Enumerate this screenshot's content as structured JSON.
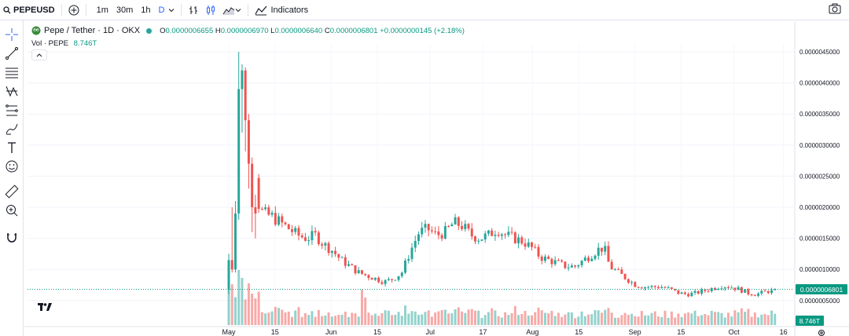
{
  "toolbar": {
    "symbol": "PEPEUSD",
    "intervals": [
      {
        "label": "1m",
        "active": false
      },
      {
        "label": "30m",
        "active": false
      },
      {
        "label": "1h",
        "active": false
      },
      {
        "label": "D",
        "active": true
      }
    ],
    "indicators_label": "Indicators"
  },
  "legend": {
    "name": "Pepe / Tether · 1D · OKX",
    "o_key": "O",
    "o_val": "0.0000006655",
    "h_key": "H",
    "h_val": "0.0000006970",
    "l_key": "L",
    "l_val": "0.0000006640",
    "c_key": "C",
    "c_val": "0.0000006801",
    "change": "+0.0000000145 (+2.18%)",
    "vol_label": "Vol · PEPE",
    "vol_value": "8.746T"
  },
  "colors": {
    "up": "#26a69a",
    "down": "#ef5350",
    "accent": "#2962ff",
    "last": "#089981"
  },
  "chart_data": {
    "type": "candlestick",
    "y_ticks": [
      "0.0000045000",
      "0.0000040000",
      "0.0000035000",
      "0.0000030000",
      "0.0000025000",
      "0.0000020000",
      "0.0000015000",
      "0.0000010000",
      "0.0000005000"
    ],
    "y_tick_values": [
      4.5,
      4.0,
      3.5,
      3.0,
      2.5,
      2.0,
      1.5,
      1.0,
      0.5
    ],
    "y_unit_note": "",
    "x_ticks": [
      "May",
      "15",
      "Jun",
      "15",
      "Jul",
      "17",
      "Aug",
      "15",
      "Sep",
      "15",
      "Oct",
      "16"
    ],
    "x_tick_days": [
      0,
      14,
      31,
      45,
      61,
      77,
      92,
      106,
      123,
      137,
      153,
      168
    ],
    "ylim": [
      0.2,
      4.7
    ],
    "last_price": "0.0000006801",
    "last_volume": "8.746T",
    "anchors": [
      [
        -1,
        1.0
      ],
      [
        0,
        0.68
      ],
      [
        1,
        1.2
      ],
      [
        2,
        1.9
      ],
      [
        3,
        3.8
      ],
      [
        4,
        4.2
      ],
      [
        5,
        3.3
      ],
      [
        6,
        2.7
      ],
      [
        7,
        2.0
      ],
      [
        8,
        1.9
      ],
      [
        10,
        1.85
      ],
      [
        12,
        1.75
      ],
      [
        14,
        1.65
      ],
      [
        16,
        1.55
      ],
      [
        18,
        1.5
      ],
      [
        20,
        1.55
      ],
      [
        22,
        1.4
      ],
      [
        24,
        1.3
      ],
      [
        26,
        1.15
      ],
      [
        28,
        1.05
      ],
      [
        30,
        0.95
      ],
      [
        32,
        0.9
      ],
      [
        34,
        0.85
      ],
      [
        36,
        0.8
      ],
      [
        38,
        0.85
      ],
      [
        40,
        0.95
      ],
      [
        42,
        1.3
      ],
      [
        44,
        1.6
      ],
      [
        46,
        1.65
      ],
      [
        48,
        1.55
      ],
      [
        50,
        1.6
      ],
      [
        52,
        1.75
      ],
      [
        54,
        1.7
      ],
      [
        56,
        1.55
      ],
      [
        58,
        1.5
      ],
      [
        60,
        1.55
      ],
      [
        62,
        1.65
      ],
      [
        64,
        1.55
      ],
      [
        66,
        1.5
      ],
      [
        68,
        1.45
      ],
      [
        70,
        1.35
      ],
      [
        72,
        1.2
      ],
      [
        74,
        1.15
      ],
      [
        76,
        1.1
      ],
      [
        78,
        1.05
      ],
      [
        80,
        1.05
      ],
      [
        82,
        1.15
      ],
      [
        84,
        1.25
      ],
      [
        86,
        1.35
      ],
      [
        87,
        1.3
      ],
      [
        88,
        1.05
      ],
      [
        90,
        0.95
      ],
      [
        92,
        0.85
      ],
      [
        94,
        0.75
      ],
      [
        96,
        0.72
      ],
      [
        98,
        0.72
      ],
      [
        100,
        0.72
      ],
      [
        102,
        0.68
      ],
      [
        104,
        0.62
      ],
      [
        106,
        0.6
      ],
      [
        108,
        0.62
      ],
      [
        110,
        0.66
      ],
      [
        112,
        0.7
      ],
      [
        114,
        0.74
      ],
      [
        116,
        0.72
      ],
      [
        118,
        0.68
      ],
      [
        120,
        0.62
      ],
      [
        122,
        0.6
      ],
      [
        124,
        0.64
      ],
      [
        126,
        0.67
      ],
      [
        127,
        0.68
      ]
    ]
  }
}
